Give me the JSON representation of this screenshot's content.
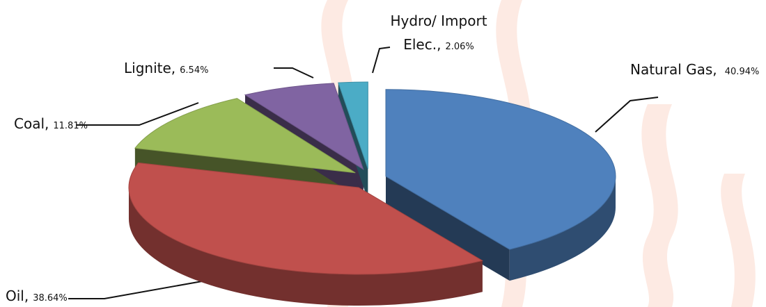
{
  "chart_data": {
    "type": "pie3d",
    "categories": [
      "Natural Gas,",
      "Oil,",
      "Coal,",
      "Lignite,",
      "Hydro/ Import Elec.,"
    ],
    "values": [
      40.94,
      38.64,
      11.81,
      6.54,
      2.06
    ],
    "value_labels": [
      "40.94%",
      "38.64%",
      "11.81%",
      "6.54%",
      "2.06%"
    ],
    "colors": [
      "#4f81bd",
      "#c0504d",
      "#9bbb59",
      "#8064a2",
      "#4bacc6"
    ]
  }
}
